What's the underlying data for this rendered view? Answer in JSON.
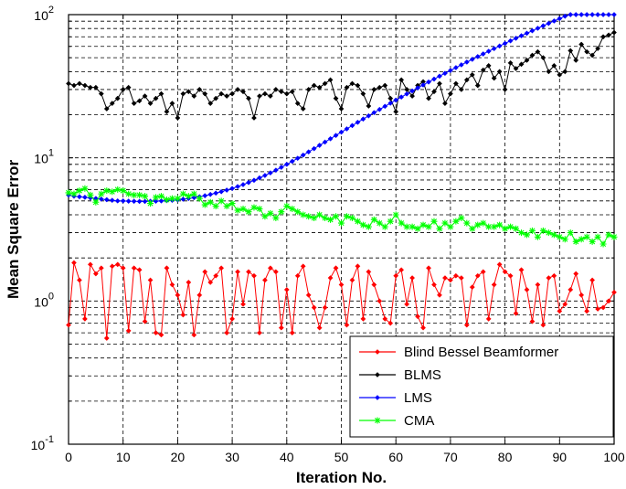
{
  "chart_data": {
    "type": "line",
    "title": "",
    "xlabel": "Iteration No.",
    "ylabel": "Mean Square Error",
    "xlim": [
      0,
      100
    ],
    "ylim": [
      0.1,
      100
    ],
    "yscale": "log",
    "grid": true,
    "legend_position": "bottom-right",
    "x_ticks": [
      "0",
      "10",
      "20",
      "30",
      "40",
      "50",
      "60",
      "70",
      "80",
      "90",
      "100"
    ],
    "y_ticks": [
      {
        "base": "10",
        "exp": "-1"
      },
      {
        "base": "10",
        "exp": "0"
      },
      {
        "base": "10",
        "exp": "1"
      },
      {
        "base": "10",
        "exp": "2"
      }
    ],
    "series": [
      {
        "name": "Blind Bessel Beamformer",
        "color": "#ff0000",
        "marker": "diamond",
        "x_start": 0,
        "values": [
          0.68,
          1.85,
          1.4,
          0.75,
          1.8,
          1.55,
          1.7,
          0.55,
          1.75,
          1.8,
          1.7,
          0.62,
          1.7,
          1.65,
          0.72,
          1.4,
          0.6,
          0.58,
          1.7,
          1.3,
          1.1,
          0.8,
          1.35,
          0.58,
          1.1,
          1.6,
          1.35,
          1.5,
          1.7,
          0.6,
          0.75,
          1.6,
          0.95,
          1.6,
          1.5,
          0.6,
          1.4,
          1.7,
          1.6,
          0.65,
          1.2,
          0.6,
          1.5,
          1.75,
          1.1,
          0.9,
          0.65,
          0.9,
          1.45,
          1.7,
          1.3,
          0.68,
          1.4,
          1.75,
          0.75,
          1.6,
          1.3,
          1.0,
          0.75,
          0.7,
          1.5,
          1.65,
          0.95,
          1.45,
          0.78,
          0.65,
          1.7,
          1.3,
          1.1,
          1.45,
          1.4,
          1.5,
          1.45,
          0.68,
          1.25,
          1.5,
          1.6,
          0.75,
          1.3,
          1.8,
          1.6,
          1.5,
          0.82,
          1.65,
          1.2,
          0.72,
          1.3,
          0.68,
          1.45,
          1.5,
          0.85,
          0.95,
          1.2,
          1.55,
          1.1,
          0.85,
          1.4,
          0.88,
          0.9,
          1.0,
          1.15
        ]
      },
      {
        "name": "BLMS",
        "color": "#000000",
        "marker": "diamond",
        "x_start": 0,
        "values": [
          33,
          32,
          33,
          32,
          31,
          31,
          28,
          22,
          24,
          26,
          30,
          31,
          24,
          25,
          27,
          24,
          26,
          28,
          21,
          24,
          19,
          28,
          29,
          27,
          30,
          28,
          24,
          26,
          28,
          27,
          28,
          30,
          29,
          26,
          19,
          27,
          28,
          27,
          30,
          29,
          28,
          29,
          24,
          22,
          30,
          32,
          31,
          33,
          35,
          26,
          22,
          31,
          33,
          32,
          28,
          23,
          30,
          31,
          32,
          26,
          21,
          35,
          30,
          27,
          32,
          34,
          26,
          29,
          33,
          24,
          28,
          33,
          30,
          35,
          38,
          32,
          41,
          44,
          36,
          40,
          30,
          46,
          42,
          45,
          48,
          52,
          55,
          50,
          40,
          44,
          38,
          40,
          56,
          48,
          62,
          55,
          52,
          58,
          70,
          72,
          75
        ]
      },
      {
        "name": "LMS",
        "color": "#0000ff",
        "marker": "diamond",
        "x_start": 0,
        "values": [
          5.5,
          5.4,
          5.35,
          5.3,
          5.25,
          5.2,
          5.15,
          5.1,
          5.05,
          5.0,
          5.0,
          4.98,
          4.97,
          4.96,
          4.96,
          4.97,
          4.98,
          5.0,
          5.02,
          5.05,
          5.09,
          5.14,
          5.2,
          5.27,
          5.35,
          5.44,
          5.55,
          5.67,
          5.8,
          5.95,
          6.11,
          6.3,
          6.5,
          6.72,
          6.97,
          7.24,
          7.53,
          7.85,
          8.2,
          8.58,
          9.0,
          9.45,
          9.93,
          10.45,
          11.0,
          11.59,
          12.22,
          12.88,
          13.59,
          14.33,
          15.11,
          15.93,
          16.8,
          17.7,
          18.65,
          19.64,
          20.68,
          21.76,
          22.89,
          24.07,
          25.3,
          26.58,
          27.92,
          29.31,
          30.76,
          32.27,
          33.84,
          35.47,
          37.16,
          38.92,
          40.74,
          42.63,
          44.59,
          46.62,
          48.72,
          50.89,
          53.14,
          55.47,
          57.88,
          60.37,
          62.94,
          65.6,
          68.35,
          71.19,
          74.12,
          77.15,
          80.28,
          83.51,
          86.84,
          90.28,
          93.82,
          97.47,
          101.2,
          105.1,
          109.1,
          113.2,
          117.4,
          121.8,
          126.3,
          130.9,
          135.6
        ]
      },
      {
        "name": "CMA",
        "color": "#00ff00",
        "marker": "star",
        "x_start": 0,
        "values": [
          5.7,
          5.6,
          5.9,
          6.1,
          5.5,
          4.9,
          5.6,
          5.9,
          5.8,
          6.0,
          5.9,
          5.6,
          5.5,
          5.5,
          5.4,
          4.8,
          5.3,
          5.4,
          5.1,
          5.2,
          5.2,
          5.6,
          5.4,
          5.6,
          5.2,
          4.7,
          4.9,
          4.6,
          5.0,
          4.6,
          4.8,
          4.3,
          4.4,
          4.2,
          4.5,
          4.4,
          3.9,
          4.1,
          3.8,
          4.2,
          4.6,
          4.4,
          4.2,
          4.0,
          3.9,
          3.8,
          4.0,
          3.8,
          3.7,
          3.9,
          3.5,
          3.9,
          3.8,
          3.6,
          3.4,
          3.3,
          3.7,
          3.5,
          3.3,
          3.6,
          4.0,
          3.5,
          3.3,
          3.3,
          3.2,
          3.4,
          3.3,
          3.6,
          3.2,
          3.5,
          3.3,
          3.6,
          3.8,
          3.5,
          3.2,
          3.4,
          3.5,
          3.3,
          3.3,
          3.4,
          3.2,
          3.3,
          3.2,
          3.0,
          2.9,
          3.1,
          2.8,
          3.1,
          3.0,
          2.9,
          2.8,
          2.7,
          3.0,
          2.6,
          2.7,
          2.8,
          2.6,
          2.8,
          2.5,
          2.9,
          2.8
        ]
      }
    ]
  }
}
